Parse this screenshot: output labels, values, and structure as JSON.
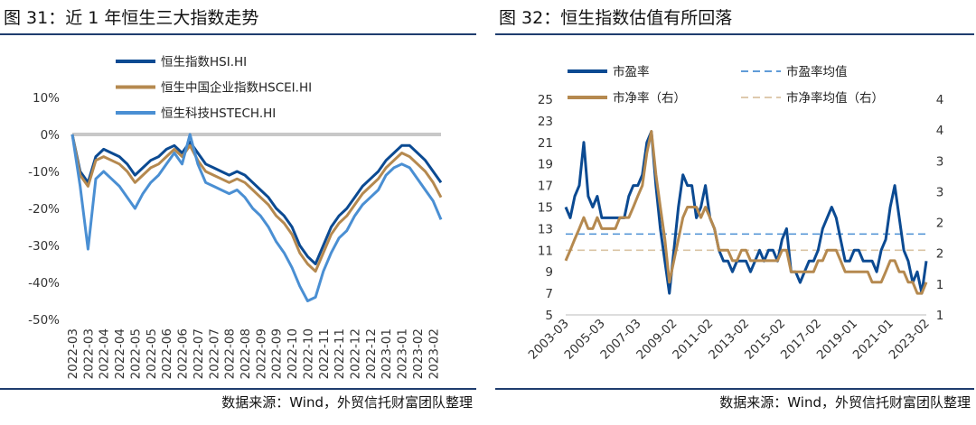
{
  "chart_data": [
    {
      "type": "line",
      "title": "图 31：近 1 年恒生三大指数走势",
      "source": "数据来源：Wind，外贸信托财富团队整理",
      "categories": [
        "2022-03",
        null,
        "2022-03",
        null,
        "2022-04",
        null,
        "2022-04",
        null,
        "2022-05",
        null,
        "2022-05",
        null,
        "2022-06",
        null,
        "2022-06",
        null,
        "2022-07",
        null,
        "2022-07",
        null,
        "2022-08",
        null,
        "2022-08",
        null,
        "2022-09",
        null,
        "2022-09",
        null,
        "2022-10",
        null,
        "2022-10",
        null,
        "2022-11",
        null,
        "2022-11",
        null,
        "2022-12",
        null,
        "2022-12",
        null,
        "2023-01",
        null,
        "2023-01",
        null,
        "2023-02",
        null,
        "2023-02",
        null
      ],
      "series": [
        {
          "name": "恒生指数HSI.HI",
          "color": "#0b4a92",
          "values": [
            0,
            -10,
            -13,
            -6,
            -4,
            -5,
            -6,
            -8,
            -11,
            -9,
            -7,
            -6,
            -4,
            -3,
            -5,
            -2,
            -5,
            -8,
            -9,
            -10,
            -11,
            -10,
            -11,
            -13,
            -15,
            -17,
            -20,
            -22,
            -25,
            -30,
            -33,
            -35,
            -30,
            -25,
            -22,
            -20,
            -17,
            -14,
            -12,
            -10,
            -7,
            -5,
            -3,
            -3,
            -5,
            -7,
            -10,
            -13
          ]
        },
        {
          "name": "恒生中国企业指数HSCEI.HI",
          "color": "#b5894f",
          "values": [
            0,
            -11,
            -14,
            -7,
            -6,
            -7,
            -8,
            -10,
            -13,
            -11,
            -9,
            -8,
            -6,
            -4,
            -6,
            -3,
            -7,
            -10,
            -11,
            -12,
            -13,
            -12,
            -13,
            -15,
            -17,
            -19,
            -22,
            -24,
            -27,
            -32,
            -35,
            -37,
            -32,
            -27,
            -24,
            -22,
            -19,
            -16,
            -14,
            -12,
            -9,
            -7,
            -5,
            -6,
            -8,
            -10,
            -13,
            -17
          ]
        },
        {
          "name": "恒生科技HSTECH.HI",
          "color": "#4a8fd3",
          "values": [
            0,
            -14,
            -31,
            -12,
            -10,
            -12,
            -14,
            -17,
            -20,
            -16,
            -13,
            -11,
            -8,
            -5,
            -8,
            0,
            -8,
            -13,
            -14,
            -15,
            -16,
            -15,
            -17,
            -20,
            -22,
            -25,
            -29,
            -32,
            -36,
            -41,
            -45,
            -44,
            -37,
            -32,
            -28,
            -26,
            -22,
            -19,
            -17,
            -15,
            -11,
            -9,
            -8,
            -9,
            -12,
            -15,
            -18,
            -23
          ]
        }
      ],
      "ylim": [
        -50,
        10
      ],
      "yticks": [
        {
          "value": 10,
          "label": "10%"
        },
        {
          "value": 0,
          "label": "0%"
        },
        {
          "value": -10,
          "label": "-10%"
        },
        {
          "value": -20,
          "label": "-20%"
        },
        {
          "value": -30,
          "label": "-30%"
        },
        {
          "value": -40,
          "label": "-40%"
        },
        {
          "value": -50,
          "label": "-50%"
        }
      ],
      "legend": "top-left"
    },
    {
      "type": "line",
      "title": "图 32：恒生指数估值有所回落",
      "source": "数据来源：Wind，外贸信托财富团队整理",
      "categories": [
        "2003-03",
        null,
        null,
        null,
        null,
        null,
        null,
        null,
        "2005-03",
        null,
        null,
        null,
        null,
        null,
        null,
        null,
        "2007-03",
        null,
        null,
        null,
        null,
        null,
        null,
        null,
        "2009-02",
        null,
        null,
        null,
        null,
        null,
        null,
        null,
        "2011-02",
        null,
        null,
        null,
        null,
        null,
        null,
        null,
        "2013-02",
        null,
        null,
        null,
        null,
        null,
        null,
        null,
        "2015-02",
        null,
        null,
        null,
        null,
        null,
        null,
        null,
        "2017-02",
        null,
        null,
        null,
        null,
        null,
        null,
        null,
        "2019-01",
        null,
        null,
        null,
        null,
        null,
        null,
        null,
        "2021-01",
        null,
        null,
        null,
        null,
        null,
        null,
        null,
        "2023-02"
      ],
      "series": [
        {
          "name": "市盈率",
          "color": "#0b4a92",
          "values": [
            15,
            14,
            16,
            17,
            21,
            16,
            15,
            16,
            14,
            14,
            14,
            14,
            14,
            14,
            16,
            17,
            17,
            18,
            21,
            22,
            17,
            13,
            10,
            7,
            11,
            15,
            18,
            17,
            17,
            14,
            15,
            17,
            14,
            13,
            11,
            10,
            10,
            9,
            10,
            10,
            10,
            9,
            10,
            11,
            10,
            11,
            11,
            10,
            12,
            13,
            9,
            9,
            8,
            9,
            10,
            10,
            11,
            13,
            14,
            15,
            14,
            12,
            10,
            10,
            11,
            11,
            10,
            10,
            10,
            9,
            11,
            12,
            15,
            17,
            14,
            11,
            10,
            8,
            9,
            7,
            10
          ]
        },
        {
          "name": "市净率（右）",
          "color": "#b5894f",
          "axis": "y2",
          "values": [
            1.58,
            1.75,
            1.93,
            2.1,
            2.28,
            2.1,
            2.1,
            2.28,
            2.1,
            2.1,
            2.1,
            2.1,
            2.28,
            2.28,
            2.28,
            2.45,
            2.63,
            2.8,
            3.33,
            3.68,
            2.98,
            2.45,
            1.93,
            1.23,
            1.58,
            1.93,
            2.28,
            2.45,
            2.45,
            2.45,
            2.28,
            2.45,
            2.28,
            2.1,
            1.75,
            1.75,
            1.75,
            1.58,
            1.58,
            1.75,
            1.75,
            1.58,
            1.58,
            1.58,
            1.58,
            1.58,
            1.58,
            1.58,
            1.75,
            1.75,
            1.4,
            1.4,
            1.4,
            1.4,
            1.4,
            1.4,
            1.58,
            1.58,
            1.75,
            1.75,
            1.75,
            1.58,
            1.4,
            1.4,
            1.4,
            1.4,
            1.4,
            1.4,
            1.23,
            1.23,
            1.23,
            1.4,
            1.58,
            1.58,
            1.4,
            1.4,
            1.23,
            1.23,
            1.05,
            1.05,
            1.23
          ]
        }
      ],
      "mean_lines": [
        {
          "name": "市盈率均值",
          "color": "#4a8fd3",
          "value": 12.5
        },
        {
          "name": "市净率均值（右）",
          "color": "#d9c3a3",
          "value": 1.75,
          "axis": "y2"
        }
      ],
      "ylim": [
        5,
        25
      ],
      "yticks": [
        5,
        7,
        9,
        11,
        13,
        15,
        17,
        19,
        21,
        23,
        25
      ],
      "y2lim": [
        0.7,
        4.2
      ],
      "y2ticks": [
        {
          "value": 0.7,
          "label": "1"
        },
        {
          "value": 1.2,
          "label": "1"
        },
        {
          "value": 1.7,
          "label": "2"
        },
        {
          "value": 2.2,
          "label": "2"
        },
        {
          "value": 2.7,
          "label": "3"
        },
        {
          "value": 3.2,
          "label": "3"
        },
        {
          "value": 3.7,
          "label": "4"
        },
        {
          "value": 4.2,
          "label": "4"
        }
      ],
      "legend": "top"
    }
  ]
}
